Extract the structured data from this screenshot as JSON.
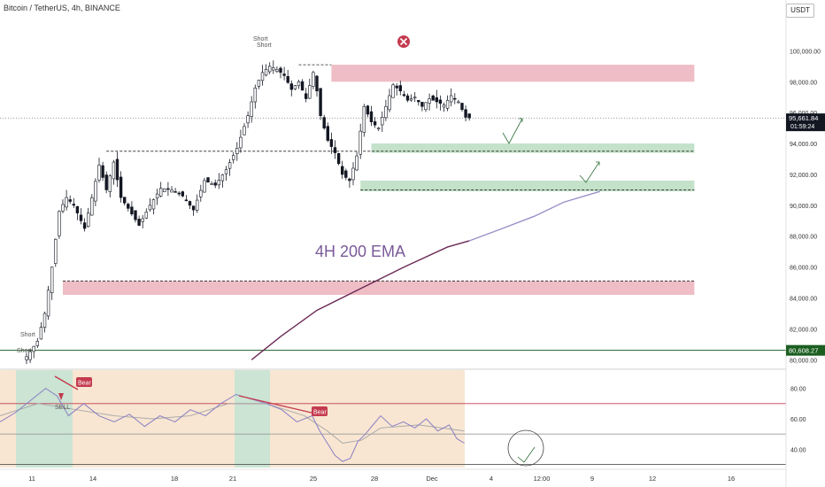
{
  "header": {
    "symbol_title": "Bitcoin / TetherUS, 4h, BINANCE",
    "currency_button": "USDT"
  },
  "colors": {
    "up": "#26a69a",
    "down": "#ef5350",
    "candle": "#131722",
    "resistance_zone": "#e8a1ad",
    "support_zone": "#a9d5b2",
    "ema": "#6b2a55",
    "rsi_line": "#8a7fc4",
    "rsi_ma": "#a9a9a9",
    "bear_label": "#c43a4e",
    "indicator_bg": "#f5dec3",
    "green_line": "#1b5e20"
  },
  "chart_data": [
    {
      "type": "line",
      "title": "",
      "subtitle": "",
      "xlabel": "",
      "ylabel": "",
      "x_tick_labels": [
        "11",
        "14",
        "18",
        "21",
        "25",
        "28",
        "Dec",
        "4",
        "12:00",
        "9",
        "12",
        "16"
      ],
      "y_tick_labels": [
        "80,000.00",
        "82,000.00",
        "84,000.00",
        "86,000.00",
        "88,000.00",
        "90,000.00",
        "92,000.00",
        "94,000.00",
        "96,000.00",
        "98,000.00",
        "100,000.00"
      ],
      "ylim": [
        79500,
        101000
      ],
      "grid": false,
      "price_labels": {
        "current_price": "95,661.84",
        "countdown": "01:59:24",
        "line_level_label": "80,608.27",
        "line_level": 80608.27
      },
      "price_path": [
        [
          0,
          80200
        ],
        [
          3,
          81200
        ],
        [
          5,
          83000
        ],
        [
          7,
          86000
        ],
        [
          9,
          89600
        ],
        [
          11,
          90500
        ],
        [
          13,
          90000
        ],
        [
          16,
          88500
        ],
        [
          18,
          90500
        ],
        [
          20,
          92600
        ],
        [
          22,
          91000
        ],
        [
          24,
          92800
        ],
        [
          26,
          90500
        ],
        [
          28,
          89800
        ],
        [
          31,
          88700
        ],
        [
          34,
          90000
        ],
        [
          37,
          91100
        ],
        [
          40,
          91000
        ],
        [
          43,
          90600
        ],
        [
          46,
          89700
        ],
        [
          49,
          91600
        ],
        [
          52,
          91300
        ],
        [
          55,
          92300
        ],
        [
          58,
          93700
        ],
        [
          61,
          95800
        ],
        [
          63,
          97600
        ],
        [
          65,
          98600
        ],
        [
          67,
          99000
        ],
        [
          69,
          98800
        ],
        [
          71,
          98400
        ],
        [
          73,
          97500
        ],
        [
          75,
          98000
        ],
        [
          77,
          96900
        ],
        [
          79,
          98600
        ],
        [
          80,
          97400
        ],
        [
          81,
          95800
        ],
        [
          83,
          94200
        ],
        [
          85,
          93400
        ],
        [
          87,
          92000
        ],
        [
          89,
          91600
        ],
        [
          91,
          93200
        ],
        [
          93,
          96400
        ],
        [
          95,
          95400
        ],
        [
          97,
          95000
        ],
        [
          99,
          96400
        ],
        [
          101,
          97800
        ],
        [
          103,
          97400
        ],
        [
          105,
          96800
        ],
        [
          107,
          97000
        ],
        [
          109,
          96400
        ],
        [
          111,
          96900
        ],
        [
          113,
          96700
        ],
        [
          115,
          96500
        ],
        [
          117,
          97100
        ],
        [
          119,
          96700
        ],
        [
          121,
          95700
        ],
        [
          122,
          95660
        ]
      ],
      "ema": {
        "name": "4H 200 EMA",
        "points": [
          [
            62,
            80000
          ],
          [
            70,
            81500
          ],
          [
            80,
            83200
          ],
          [
            92,
            84600
          ],
          [
            104,
            86000
          ],
          [
            116,
            87300
          ],
          [
            122,
            87700
          ],
          [
            130,
            88400
          ],
          [
            140,
            89300
          ],
          [
            148,
            90200
          ],
          [
            158,
            90900
          ]
        ]
      },
      "zones": [
        {
          "kind": "resistance",
          "from": 98000,
          "to": 99100,
          "x0": 84,
          "x1": 184
        },
        {
          "kind": "support",
          "from": 93400,
          "to": 94000,
          "x0": 95,
          "x1": 184
        },
        {
          "kind": "support",
          "from": 90900,
          "to": 91600,
          "x0": 92,
          "x1": 184
        },
        {
          "kind": "resistance",
          "from": 84200,
          "to": 85100,
          "x0": 10,
          "x1": 184
        }
      ],
      "dashed_levels": [
        {
          "y": 93500,
          "x0": 22,
          "x1": 184
        },
        {
          "y": 91000,
          "x0": 92,
          "x1": 184
        },
        {
          "y": 85100,
          "x0": 10,
          "x1": 184
        },
        {
          "y": 99100,
          "x0": 75,
          "x1": 84
        }
      ],
      "annotations": {
        "short_top": "Short",
        "short_top2": "Short",
        "short_low": "Short",
        "short_low2": "Short"
      }
    },
    {
      "type": "line",
      "title": "",
      "xlabel": "",
      "ylabel": "",
      "y_tick_labels": [
        "80.00",
        "60.00",
        "40.00"
      ],
      "ylim": [
        28,
        92
      ],
      "rsi_points": [
        [
          0,
          58
        ],
        [
          4,
          64
        ],
        [
          8,
          72
        ],
        [
          12,
          80
        ],
        [
          15,
          75
        ],
        [
          18,
          62
        ],
        [
          22,
          70
        ],
        [
          26,
          62
        ],
        [
          30,
          58
        ],
        [
          34,
          63
        ],
        [
          38,
          55
        ],
        [
          42,
          62
        ],
        [
          46,
          58
        ],
        [
          50,
          66
        ],
        [
          54,
          62
        ],
        [
          58,
          70
        ],
        [
          62,
          76
        ],
        [
          66,
          73
        ],
        [
          70,
          70
        ],
        [
          74,
          66
        ],
        [
          78,
          58
        ],
        [
          82,
          62
        ],
        [
          84,
          52
        ],
        [
          86,
          44
        ],
        [
          88,
          36
        ],
        [
          90,
          32
        ],
        [
          92,
          34
        ],
        [
          94,
          45
        ],
        [
          96,
          50
        ],
        [
          98,
          56
        ],
        [
          100,
          62
        ],
        [
          103,
          55
        ],
        [
          106,
          58
        ],
        [
          109,
          54
        ],
        [
          112,
          60
        ],
        [
          115,
          52
        ],
        [
          118,
          56
        ],
        [
          120,
          47
        ],
        [
          122,
          44
        ]
      ],
      "rsi_ma_points": [
        [
          0,
          62
        ],
        [
          10,
          70
        ],
        [
          20,
          66
        ],
        [
          30,
          62
        ],
        [
          40,
          60
        ],
        [
          50,
          62
        ],
        [
          60,
          70
        ],
        [
          70,
          70
        ],
        [
          80,
          62
        ],
        [
          86,
          52
        ],
        [
          90,
          44
        ],
        [
          95,
          46
        ],
        [
          100,
          54
        ],
        [
          110,
          56
        ],
        [
          122,
          52
        ]
      ],
      "bands": [
        70,
        50,
        30
      ],
      "labels": {
        "bear1": "Bear",
        "bear2": "Bear",
        "sell": "SELL"
      }
    }
  ],
  "overlay_text": {
    "ema_label": "4H 200 EMA"
  }
}
